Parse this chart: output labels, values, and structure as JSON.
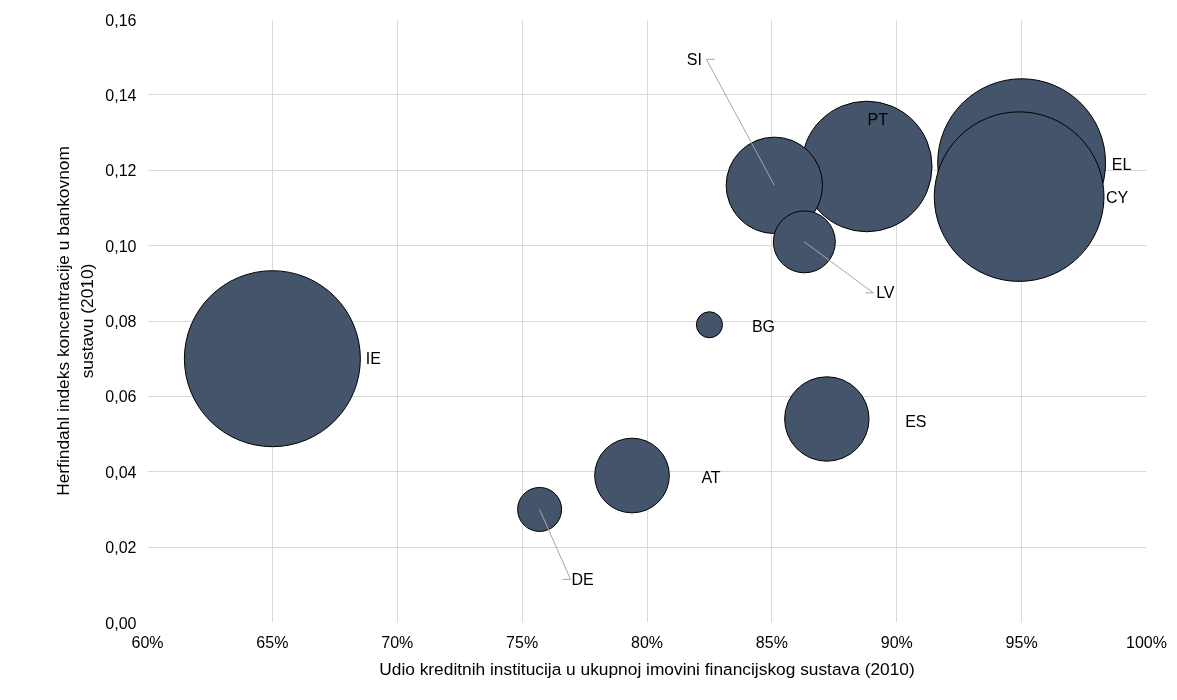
{
  "chart_data": {
    "type": "bubble",
    "xlabel": "Udio kreditnih institucija u ukupnoj imovini financijskog sustava (2010)",
    "ylabel": "Herfindahl indeks koncentracije u bankovnom\nsustavu (2010)",
    "xlim": [
      60,
      100
    ],
    "ylim": [
      0,
      0.16
    ],
    "xticks": [
      {
        "value": 60,
        "label": "60%"
      },
      {
        "value": 65,
        "label": "65%"
      },
      {
        "value": 70,
        "label": "70%"
      },
      {
        "value": 75,
        "label": "75%"
      },
      {
        "value": 80,
        "label": "80%"
      },
      {
        "value": 85,
        "label": "85%"
      },
      {
        "value": 90,
        "label": "90%"
      },
      {
        "value": 95,
        "label": "95%"
      },
      {
        "value": 100,
        "label": "100%"
      }
    ],
    "yticks": [
      {
        "value": 0,
        "label": "0,00"
      },
      {
        "value": 0.02,
        "label": "0,02"
      },
      {
        "value": 0.04,
        "label": "0,04"
      },
      {
        "value": 0.06,
        "label": "0,06"
      },
      {
        "value": 0.08,
        "label": "0,08"
      },
      {
        "value": 0.1,
        "label": "0,10"
      },
      {
        "value": 0.12,
        "label": "0,12"
      },
      {
        "value": 0.14,
        "label": "0,14"
      },
      {
        "value": 0.16,
        "label": "0,16"
      }
    ],
    "grid": true,
    "series": [
      {
        "name": "IE",
        "color": "#44546a",
        "x": [
          65.0
        ],
        "values": [
          0.07
        ],
        "sizes": [
          1
        ]
      },
      {
        "name": "EL",
        "color": "#44546a",
        "x": [
          95.0
        ],
        "values": [
          0.122
        ],
        "sizes": [
          0.91
        ]
      },
      {
        "name": "CY",
        "color": "#44546a",
        "x": [
          94.9
        ],
        "values": [
          0.113
        ],
        "sizes": [
          0.93
        ]
      },
      {
        "name": "PT",
        "color": "#44546a",
        "x": [
          88.8
        ],
        "values": [
          0.121
        ],
        "sizes": [
          0.55
        ]
      },
      {
        "name": "SI",
        "color": "#44546a",
        "x": [
          85.1
        ],
        "values": [
          0.116
        ],
        "sizes": [
          0.3
        ]
      },
      {
        "name": "LV",
        "color": "#44546a",
        "x": [
          86.3
        ],
        "values": [
          0.101
        ],
        "sizes": [
          0.124
        ]
      },
      {
        "name": "ES",
        "color": "#44546a",
        "x": [
          87.2
        ],
        "values": [
          0.054
        ],
        "sizes": [
          0.23
        ]
      },
      {
        "name": "BG",
        "color": "#44546a",
        "x": [
          82.5
        ],
        "values": [
          0.079
        ],
        "sizes": [
          0.022
        ]
      },
      {
        "name": "AT",
        "color": "#44546a",
        "x": [
          79.4
        ],
        "values": [
          0.039
        ],
        "sizes": [
          0.18
        ]
      },
      {
        "name": "DE",
        "color": "#44546a",
        "x": [
          75.7
        ],
        "values": [
          0.03
        ],
        "sizes": [
          0.0625
        ]
      }
    ]
  }
}
